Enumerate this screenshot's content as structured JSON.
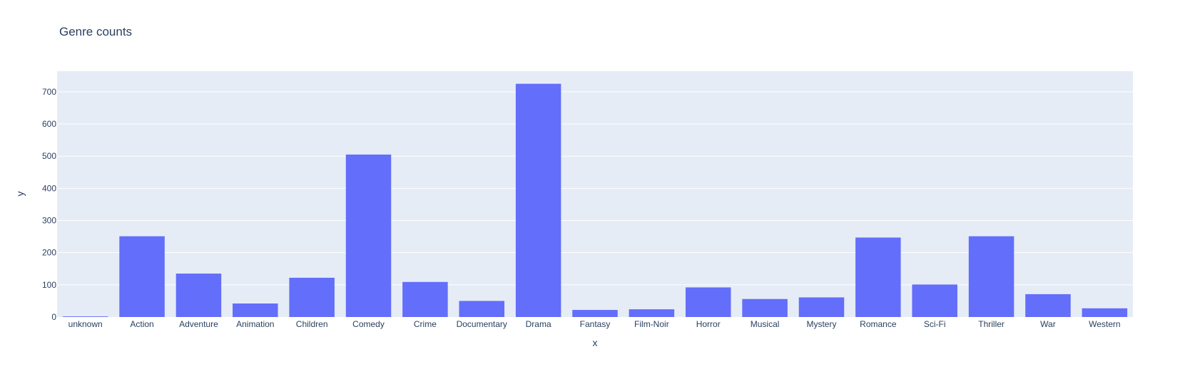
{
  "colors": {
    "plot_background": "#E5ECF6",
    "gridline": "#FFFFFF",
    "bar": "#636EFA",
    "text": "#2a3f5f"
  },
  "chart_data": {
    "type": "bar",
    "title": "Genre counts",
    "xlabel": "x",
    "ylabel": "y",
    "categories": [
      "unknown",
      "Action",
      "Adventure",
      "Animation",
      "Children",
      "Comedy",
      "Crime",
      "Documentary",
      "Drama",
      "Fantasy",
      "Film-Noir",
      "Horror",
      "Musical",
      "Mystery",
      "Romance",
      "Sci-Fi",
      "Thriller",
      "War",
      "Western"
    ],
    "values": [
      2,
      251,
      135,
      42,
      122,
      505,
      109,
      50,
      725,
      22,
      24,
      92,
      56,
      61,
      247,
      101,
      251,
      71,
      27
    ],
    "ylim": [
      0,
      764
    ],
    "yticks": [
      0,
      100,
      200,
      300,
      400,
      500,
      600,
      700
    ],
    "grid": true,
    "legend": "none"
  }
}
